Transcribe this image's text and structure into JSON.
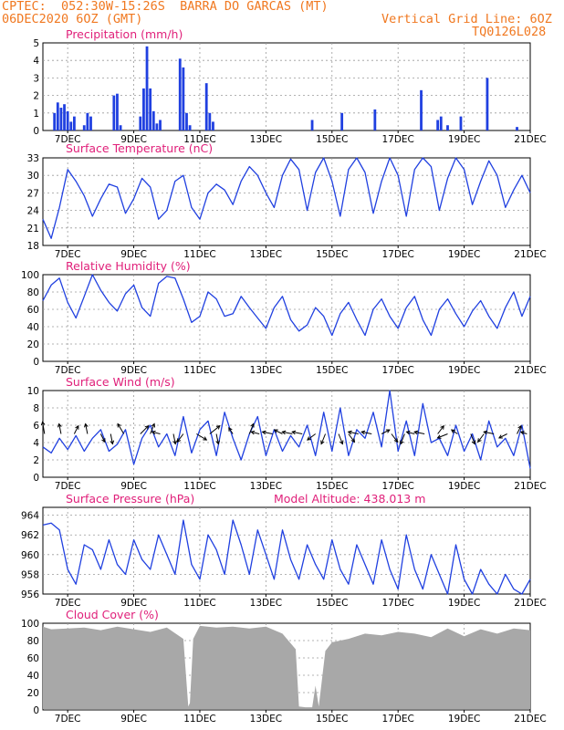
{
  "header": {
    "org": "CPTEC:",
    "coords": "052:30W-15:26S",
    "station": "BARRA DO GARCAS (MT)",
    "init": "06DEC2020 6OZ (GMT)",
    "grid_note": "Vertical Grid Line: 6OZ",
    "code": "TQ0126L028"
  },
  "model_altitude": "Model Altitude: 438.013 m",
  "colors": {
    "header": "#f07820",
    "title": "#e0207a",
    "line": "#2040e0",
    "bar": "#2040e0",
    "cloud": "#a8a8a8",
    "grid": "#9a9a9a"
  },
  "x_ticks": [
    "7DEC",
    "9DEC",
    "11DEC",
    "13DEC",
    "15DEC",
    "17DEC",
    "19DEC",
    "21DEC"
  ],
  "chart_data": [
    {
      "type": "bar",
      "title": "Precipitation (mm/h)",
      "ylim": [
        0,
        5
      ],
      "yticks": [
        "0",
        "1",
        "2",
        "3",
        "4",
        "5"
      ],
      "x_range_days": [
        6.25,
        21.0
      ],
      "x": [
        6.6,
        6.7,
        6.8,
        6.9,
        7.0,
        7.1,
        7.2,
        7.5,
        7.6,
        7.7,
        8.4,
        8.5,
        8.6,
        9.2,
        9.3,
        9.4,
        9.5,
        9.6,
        9.7,
        9.8,
        10.4,
        10.5,
        10.6,
        10.7,
        11.2,
        11.3,
        11.4,
        14.4,
        15.3,
        16.3,
        17.7,
        18.2,
        18.3,
        18.5,
        18.9,
        19.7,
        20.6
      ],
      "values": [
        1.0,
        1.6,
        1.3,
        1.5,
        1.1,
        0.5,
        0.8,
        0.3,
        1.0,
        0.8,
        2.0,
        2.1,
        0.3,
        0.8,
        2.4,
        4.8,
        2.4,
        1.1,
        0.4,
        0.6,
        4.1,
        3.6,
        1.0,
        0.3,
        2.7,
        1.0,
        0.5,
        0.6,
        1.0,
        1.2,
        2.3,
        0.6,
        0.8,
        0.3,
        0.8,
        3.0,
        0.2
      ]
    },
    {
      "type": "line",
      "title": "Surface Temperature (nC)",
      "ylim": [
        18,
        33
      ],
      "yticks": [
        "18",
        "21",
        "24",
        "27",
        "30",
        "33"
      ],
      "x_range_days": [
        6.25,
        21.0
      ],
      "x": [
        6.25,
        6.5,
        6.75,
        7.0,
        7.25,
        7.5,
        7.75,
        8.0,
        8.25,
        8.5,
        8.75,
        9.0,
        9.25,
        9.5,
        9.75,
        10.0,
        10.25,
        10.5,
        10.75,
        11.0,
        11.25,
        11.5,
        11.75,
        12.0,
        12.25,
        12.5,
        12.75,
        13.0,
        13.25,
        13.5,
        13.75,
        14.0,
        14.25,
        14.5,
        14.75,
        15.0,
        15.25,
        15.5,
        15.75,
        16.0,
        16.25,
        16.5,
        16.75,
        17.0,
        17.25,
        17.5,
        17.75,
        18.0,
        18.25,
        18.5,
        18.75,
        19.0,
        19.25,
        19.5,
        19.75,
        20.0,
        20.25,
        20.5,
        20.75,
        21.0
      ],
      "values": [
        22.5,
        19.2,
        24.5,
        31.0,
        29.0,
        26.5,
        23.0,
        26.0,
        28.5,
        28.0,
        23.5,
        26.0,
        29.5,
        28.0,
        22.5,
        24.0,
        29.0,
        30.0,
        24.5,
        22.5,
        27.0,
        28.5,
        27.5,
        25.0,
        29.0,
        31.5,
        30.0,
        27.0,
        24.5,
        30.0,
        32.8,
        31.0,
        24.0,
        30.5,
        33.0,
        29.0,
        23.0,
        31.0,
        33.0,
        30.5,
        23.5,
        29.0,
        33.0,
        30.0,
        23.0,
        31.0,
        33.0,
        31.5,
        24.0,
        29.5,
        33.0,
        31.0,
        25.0,
        29.0,
        32.5,
        30.0,
        24.5,
        27.5,
        30.0,
        27.0
      ]
    },
    {
      "type": "line",
      "title": "Relative Humidity (%)",
      "ylim": [
        0,
        100
      ],
      "yticks": [
        "0",
        "20",
        "40",
        "60",
        "80",
        "100"
      ],
      "x_range_days": [
        6.25,
        21.0
      ],
      "x": [
        6.25,
        6.5,
        6.75,
        7.0,
        7.25,
        7.5,
        7.75,
        8.0,
        8.25,
        8.5,
        8.75,
        9.0,
        9.25,
        9.5,
        9.75,
        10.0,
        10.25,
        10.5,
        10.75,
        11.0,
        11.25,
        11.5,
        11.75,
        12.0,
        12.25,
        12.5,
        12.75,
        13.0,
        13.25,
        13.5,
        13.75,
        14.0,
        14.25,
        14.5,
        14.75,
        15.0,
        15.25,
        15.5,
        15.75,
        16.0,
        16.25,
        16.5,
        16.75,
        17.0,
        17.25,
        17.5,
        17.75,
        18.0,
        18.25,
        18.5,
        18.75,
        19.0,
        19.25,
        19.5,
        19.75,
        20.0,
        20.25,
        20.5,
        20.75,
        21.0
      ],
      "values": [
        70,
        88,
        96,
        68,
        50,
        75,
        100,
        82,
        68,
        58,
        78,
        88,
        62,
        52,
        90,
        98,
        96,
        72,
        45,
        52,
        80,
        72,
        52,
        55,
        75,
        62,
        50,
        38,
        62,
        75,
        48,
        35,
        42,
        62,
        52,
        30,
        55,
        68,
        48,
        30,
        60,
        72,
        52,
        38,
        62,
        75,
        48,
        30,
        60,
        72,
        55,
        40,
        58,
        70,
        52,
        38,
        62,
        80,
        52,
        75
      ]
    },
    {
      "type": "line",
      "title": "Surface Wind (m/s)",
      "ylim": [
        0,
        10
      ],
      "yticks": [
        "0",
        "2",
        "4",
        "6",
        "8",
        "10"
      ],
      "x_range_days": [
        6.25,
        21.0
      ],
      "x": [
        6.25,
        6.5,
        6.75,
        7.0,
        7.25,
        7.5,
        7.75,
        8.0,
        8.25,
        8.5,
        8.75,
        9.0,
        9.25,
        9.5,
        9.75,
        10.0,
        10.25,
        10.5,
        10.75,
        11.0,
        11.25,
        11.5,
        11.75,
        12.0,
        12.25,
        12.5,
        12.75,
        13.0,
        13.25,
        13.5,
        13.75,
        14.0,
        14.25,
        14.5,
        14.75,
        15.0,
        15.25,
        15.5,
        15.75,
        16.0,
        16.25,
        16.5,
        16.75,
        17.0,
        17.25,
        17.5,
        17.75,
        18.0,
        18.25,
        18.5,
        18.75,
        19.0,
        19.25,
        19.5,
        19.75,
        20.0,
        20.25,
        20.5,
        20.75,
        21.0
      ],
      "values": [
        3.5,
        2.8,
        4.5,
        3.2,
        4.8,
        3.0,
        4.5,
        5.5,
        3.0,
        3.8,
        5.5,
        1.5,
        4.5,
        6.0,
        3.5,
        5.0,
        2.5,
        7.0,
        2.8,
        5.5,
        6.5,
        2.5,
        7.5,
        4.5,
        2.0,
        5.0,
        7.0,
        2.5,
        5.5,
        3.0,
        4.8,
        3.5,
        6.0,
        2.5,
        7.5,
        3.0,
        8.0,
        2.5,
        5.5,
        4.5,
        7.5,
        3.5,
        10.0,
        3.0,
        6.5,
        2.5,
        8.5,
        4.0,
        4.5,
        2.5,
        6.0,
        3.0,
        5.0,
        2.0,
        6.5,
        3.5,
        4.5,
        2.5,
        6.0,
        1.0
      ],
      "arrows_x": [
        6.3,
        6.8,
        7.2,
        7.6,
        8.0,
        8.3,
        8.7,
        9.2,
        9.5,
        9.8,
        10.2,
        10.5,
        10.9,
        11.3,
        11.5,
        12.0,
        12.5,
        12.8,
        13.2,
        13.5,
        13.8,
        14.1,
        14.5,
        14.8,
        15.2,
        15.5,
        15.8,
        16.2,
        16.5,
        16.8,
        17.2,
        17.5,
        17.8,
        18.2,
        18.5,
        18.8,
        19.2,
        19.6,
        19.9,
        20.3,
        20.6,
        20.9
      ],
      "arrows_u": [
        -0.1,
        -0.1,
        0.2,
        -0.1,
        0.2,
        0.1,
        -0.3,
        0.4,
        0.2,
        -0.4,
        0.1,
        -0.3,
        0.5,
        0.5,
        0.1,
        -0.2,
        0.2,
        -0.4,
        -0.5,
        -0.4,
        -0.5,
        -0.5,
        -0.4,
        -0.2,
        0.2,
        0.3,
        -0.5,
        -0.5,
        0.4,
        0.3,
        -0.2,
        -0.4,
        -0.5,
        0.3,
        -0.5,
        -0.3,
        0.2,
        -0.3,
        -0.5,
        -0.4,
        0.2,
        -0.3
      ],
      "arrows_v": [
        0.6,
        0.5,
        0.4,
        0.5,
        -0.4,
        -0.5,
        0.5,
        0.4,
        0.5,
        0.1,
        -0.5,
        -0.4,
        -0.3,
        0.4,
        -0.5,
        0.3,
        0.5,
        0.1,
        0.1,
        0.2,
        0.1,
        0.1,
        -0.3,
        -0.5,
        -0.5,
        -0.4,
        0.1,
        0.1,
        0.2,
        -0.4,
        -0.5,
        0.1,
        0.1,
        0.4,
        -0.2,
        0.2,
        -0.5,
        -0.4,
        0.1,
        -0.2,
        0.4,
        0.1
      ]
    },
    {
      "type": "line",
      "title": "Surface Pressure (hPa)",
      "ylim": [
        956,
        964.8
      ],
      "yticks": [
        "956",
        "958",
        "960",
        "962",
        "964"
      ],
      "x_range_days": [
        6.25,
        21.0
      ],
      "x": [
        6.25,
        6.5,
        6.75,
        7.0,
        7.25,
        7.5,
        7.75,
        8.0,
        8.25,
        8.5,
        8.75,
        9.0,
        9.25,
        9.5,
        9.75,
        10.0,
        10.25,
        10.5,
        10.75,
        11.0,
        11.25,
        11.5,
        11.75,
        12.0,
        12.25,
        12.5,
        12.75,
        13.0,
        13.25,
        13.5,
        13.75,
        14.0,
        14.25,
        14.5,
        14.75,
        15.0,
        15.25,
        15.5,
        15.75,
        16.0,
        16.25,
        16.5,
        16.75,
        17.0,
        17.25,
        17.5,
        17.75,
        18.0,
        18.25,
        18.5,
        18.75,
        19.0,
        19.25,
        19.5,
        19.75,
        20.0,
        20.25,
        20.5,
        20.75,
        21.0
      ],
      "values": [
        963.0,
        963.2,
        962.5,
        958.5,
        957.0,
        961.0,
        960.5,
        958.5,
        961.5,
        959.0,
        958.0,
        961.5,
        959.5,
        958.5,
        962.0,
        960.0,
        958.0,
        963.5,
        959.0,
        957.5,
        962.0,
        960.5,
        958.0,
        963.5,
        961.0,
        958.0,
        962.5,
        960.0,
        957.5,
        962.5,
        959.5,
        957.5,
        961.0,
        959.0,
        957.5,
        961.5,
        958.5,
        957.0,
        961.0,
        959.0,
        957.0,
        961.5,
        958.5,
        956.5,
        962.0,
        958.5,
        956.5,
        960.0,
        958.0,
        956.0,
        961.0,
        957.5,
        956.0,
        958.5,
        957.0,
        955.5,
        958.0,
        956.5,
        955.5,
        957.5
      ]
    },
    {
      "type": "area",
      "title": "Cloud Cover (%)",
      "ylim": [
        0,
        100
      ],
      "yticks": [
        "0",
        "20",
        "40",
        "60",
        "80",
        "100"
      ],
      "x_range_days": [
        6.25,
        21.0
      ],
      "x": [
        6.25,
        6.5,
        7.0,
        7.5,
        8.0,
        8.5,
        9.0,
        9.5,
        10.0,
        10.5,
        10.65,
        10.7,
        10.8,
        11.0,
        11.5,
        12.0,
        12.5,
        13.0,
        13.5,
        13.9,
        14.0,
        14.2,
        14.4,
        14.5,
        14.6,
        14.8,
        15.0,
        15.5,
        16.0,
        16.5,
        17.0,
        17.5,
        18.0,
        18.5,
        19.0,
        19.5,
        20.0,
        20.5,
        21.0
      ],
      "values": [
        96,
        93,
        94,
        95,
        92,
        96,
        93,
        90,
        95,
        82,
        4,
        8,
        82,
        97,
        95,
        96,
        94,
        96,
        88,
        70,
        4,
        3,
        3,
        28,
        4,
        68,
        78,
        82,
        88,
        86,
        90,
        88,
        84,
        94,
        85,
        93,
        88,
        94,
        92
      ]
    }
  ]
}
